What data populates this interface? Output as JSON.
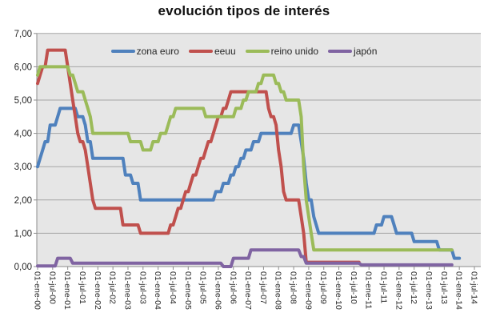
{
  "chart": {
    "title": "evolución tipos de interés"
  },
  "chart_data": {
    "type": "line",
    "title": "evolución tipos de interés",
    "xlabel": "",
    "ylabel": "",
    "ylim": [
      0,
      7
    ],
    "grid": true,
    "legend_position": "top-center-inside",
    "plot_bg_color": "#E6E6E6",
    "grid_color": "#A6A6A6",
    "axis_color": "#8C8C8C",
    "tick_text_color": "#262626",
    "y_tick_labels": [
      "0,00",
      "1,00",
      "2,00",
      "3,00",
      "4,00",
      "5,00",
      "6,00",
      "7,00"
    ],
    "x_tick_labels": [
      "01-ene-00",
      "01-jul-00",
      "01-ene-01",
      "01-jul-01",
      "01-ene-02",
      "01-jul-02",
      "01-ene-03",
      "01-jul-03",
      "01-ene-04",
      "01-jul-04",
      "01-ene-05",
      "01-jul-05",
      "01-ene-06",
      "01-jul-06",
      "01-ene-07",
      "01-jul-07",
      "01-ene-08",
      "01-jul-08",
      "01-ene-09",
      "01-jul-09",
      "01-ene-10",
      "01-jul-10",
      "01-ene-11",
      "01-jul-11",
      "01-ene-12",
      "01-jul-12",
      "01-ene-13",
      "01-jul-13",
      "01-ene-14",
      "01-jul-14"
    ],
    "x_months_per_tick": 6,
    "x_total_months": 174,
    "x_start_label": "01-ene-00",
    "series": [
      {
        "name": "zona euro",
        "color": "#4F81BD",
        "end_month": 168,
        "steps": [
          [
            0,
            3.0
          ],
          [
            1,
            3.25
          ],
          [
            2,
            3.5
          ],
          [
            3,
            3.75
          ],
          [
            5,
            4.25
          ],
          [
            8,
            4.5
          ],
          [
            9,
            4.75
          ],
          [
            16,
            4.5
          ],
          [
            19,
            4.25
          ],
          [
            20,
            3.75
          ],
          [
            22,
            3.25
          ],
          [
            35,
            2.75
          ],
          [
            38,
            2.5
          ],
          [
            41,
            2.0
          ],
          [
            71,
            2.25
          ],
          [
            74,
            2.5
          ],
          [
            77,
            2.75
          ],
          [
            79,
            3.0
          ],
          [
            81,
            3.25
          ],
          [
            83,
            3.5
          ],
          [
            86,
            3.75
          ],
          [
            89,
            4.0
          ],
          [
            102,
            4.25
          ],
          [
            105,
            3.75
          ],
          [
            106,
            3.25
          ],
          [
            107,
            2.5
          ],
          [
            108,
            2.0
          ],
          [
            110,
            1.5
          ],
          [
            111,
            1.25
          ],
          [
            112,
            1.0
          ],
          [
            135,
            1.25
          ],
          [
            138,
            1.5
          ],
          [
            142,
            1.25
          ],
          [
            143,
            1.0
          ],
          [
            150,
            0.75
          ],
          [
            160,
            0.5
          ],
          [
            166,
            0.25
          ]
        ]
      },
      {
        "name": "eeuu",
        "color": "#C0504D",
        "end_month": 128,
        "steps": [
          [
            0,
            5.5
          ],
          [
            1,
            5.75
          ],
          [
            2,
            6.0
          ],
          [
            4,
            6.5
          ],
          [
            12,
            6.0
          ],
          [
            13,
            5.5
          ],
          [
            14,
            5.0
          ],
          [
            15,
            4.5
          ],
          [
            16,
            4.0
          ],
          [
            17,
            3.75
          ],
          [
            19,
            3.5
          ],
          [
            20,
            3.0
          ],
          [
            21,
            2.5
          ],
          [
            22,
            2.0
          ],
          [
            23,
            1.75
          ],
          [
            34,
            1.25
          ],
          [
            41,
            1.0
          ],
          [
            53,
            1.25
          ],
          [
            55,
            1.5
          ],
          [
            56,
            1.75
          ],
          [
            58,
            2.0
          ],
          [
            59,
            2.25
          ],
          [
            61,
            2.5
          ],
          [
            62,
            2.75
          ],
          [
            64,
            3.0
          ],
          [
            65,
            3.25
          ],
          [
            67,
            3.5
          ],
          [
            68,
            3.75
          ],
          [
            70,
            4.0
          ],
          [
            71,
            4.25
          ],
          [
            72,
            4.5
          ],
          [
            74,
            4.75
          ],
          [
            76,
            5.0
          ],
          [
            77,
            5.25
          ],
          [
            92,
            4.75
          ],
          [
            93,
            4.5
          ],
          [
            95,
            4.25
          ],
          [
            96,
            3.5
          ],
          [
            97,
            3.0
          ],
          [
            98,
            2.25
          ],
          [
            99,
            2.0
          ],
          [
            105,
            1.5
          ],
          [
            106,
            1.0
          ],
          [
            107,
            0.13
          ]
        ]
      },
      {
        "name": "reino unido",
        "color": "#9BBB59",
        "end_month": 165,
        "steps": [
          [
            0,
            5.75
          ],
          [
            1,
            6.0
          ],
          [
            13,
            5.75
          ],
          [
            15,
            5.5
          ],
          [
            16,
            5.25
          ],
          [
            19,
            5.0
          ],
          [
            20,
            4.75
          ],
          [
            21,
            4.5
          ],
          [
            22,
            4.0
          ],
          [
            37,
            3.75
          ],
          [
            42,
            3.5
          ],
          [
            46,
            3.75
          ],
          [
            49,
            4.0
          ],
          [
            52,
            4.25
          ],
          [
            53,
            4.5
          ],
          [
            55,
            4.75
          ],
          [
            67,
            4.5
          ],
          [
            79,
            4.75
          ],
          [
            82,
            5.0
          ],
          [
            84,
            5.25
          ],
          [
            88,
            5.5
          ],
          [
            90,
            5.75
          ],
          [
            95,
            5.5
          ],
          [
            97,
            5.25
          ],
          [
            99,
            5.0
          ],
          [
            105,
            4.5
          ],
          [
            106,
            3.0
          ],
          [
            107,
            2.0
          ],
          [
            108,
            1.5
          ],
          [
            109,
            1.0
          ],
          [
            110,
            0.5
          ]
        ]
      },
      {
        "name": "japón",
        "color": "#8064A2",
        "end_month": 165,
        "steps": [
          [
            0,
            0.02
          ],
          [
            8,
            0.25
          ],
          [
            14,
            0.1
          ],
          [
            74,
            0.0
          ],
          [
            78,
            0.25
          ],
          [
            85,
            0.5
          ],
          [
            105,
            0.3
          ],
          [
            107,
            0.1
          ],
          [
            129,
            0.05
          ]
        ]
      }
    ]
  }
}
